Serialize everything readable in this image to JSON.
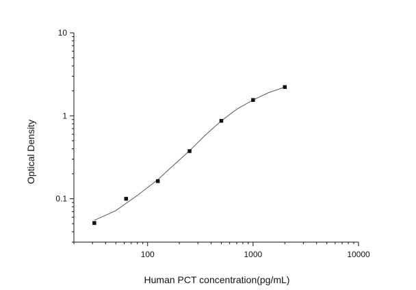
{
  "chart_data": {
    "type": "scatter",
    "xlabel": "Human PCT concentration(pg/mL)",
    "ylabel": "Optical Density",
    "x_scale": "log",
    "y_scale": "log",
    "xlim": [
      20,
      10000
    ],
    "ylim": [
      0.03,
      10
    ],
    "x_ticks": [
      {
        "value": 100,
        "label": "100"
      },
      {
        "value": 1000,
        "label": "1000"
      },
      {
        "value": 10000,
        "label": "10000"
      }
    ],
    "y_ticks": [
      {
        "value": 0.1,
        "label": "0.1"
      },
      {
        "value": 1,
        "label": "1"
      },
      {
        "value": 10,
        "label": "10"
      }
    ],
    "grid": false,
    "series": [
      {
        "points": [
          {
            "x": 31.25,
            "y": 0.051
          },
          {
            "x": 62.5,
            "y": 0.1
          },
          {
            "x": 125,
            "y": 0.163
          },
          {
            "x": 250,
            "y": 0.375
          },
          {
            "x": 500,
            "y": 0.87
          },
          {
            "x": 1000,
            "y": 1.55
          },
          {
            "x": 2000,
            "y": 2.22
          }
        ]
      }
    ],
    "fit_curve": {
      "x": [
        31.25,
        50,
        80,
        125,
        180,
        250,
        350,
        500,
        700,
        1000,
        1400,
        2000
      ],
      "y": [
        0.055,
        0.072,
        0.11,
        0.17,
        0.26,
        0.38,
        0.58,
        0.87,
        1.2,
        1.55,
        1.9,
        2.22
      ]
    },
    "colors": {
      "marker": "#111111",
      "line": "#555555",
      "axis": "#111111"
    }
  }
}
